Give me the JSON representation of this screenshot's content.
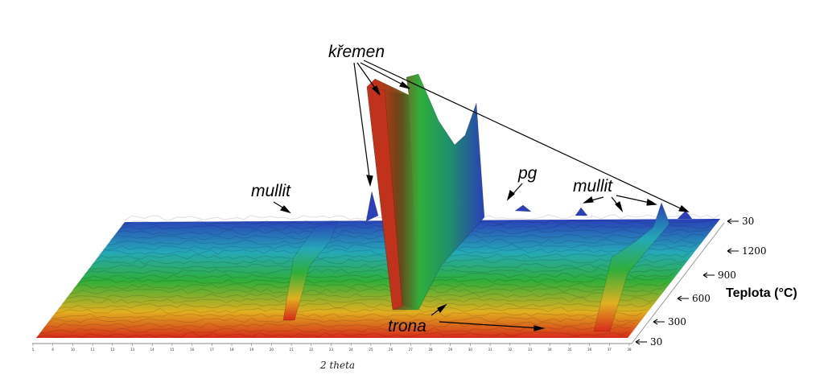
{
  "chart_data": {
    "type": "area",
    "xlabel": "2 theta",
    "ylabel": "Teplota (°C)",
    "x_ticks": [
      "5",
      "6",
      "10",
      "11",
      "12",
      "13",
      "14",
      "15",
      "16",
      "17",
      "18",
      "19",
      "20",
      "21",
      "22",
      "23",
      "24",
      "25",
      "26",
      "27",
      "28",
      "29",
      "30",
      "31",
      "32",
      "33",
      "34",
      "35",
      "36",
      "37",
      "38"
    ],
    "temperature_ticks": [
      "30",
      "1200",
      "900",
      "600",
      "300",
      "30"
    ],
    "annotations": [
      {
        "text": "křemen"
      },
      {
        "text": "mullit"
      },
      {
        "text": "pg"
      },
      {
        "text": "mullit"
      },
      {
        "text": "trona"
      }
    ],
    "colors": {
      "low_temperature": "#d62a1a",
      "mid_low": "#e0b020",
      "mid": "#2fae3a",
      "mid_high": "#25a8b8",
      "high_temperature": "#2a3fb8"
    }
  }
}
